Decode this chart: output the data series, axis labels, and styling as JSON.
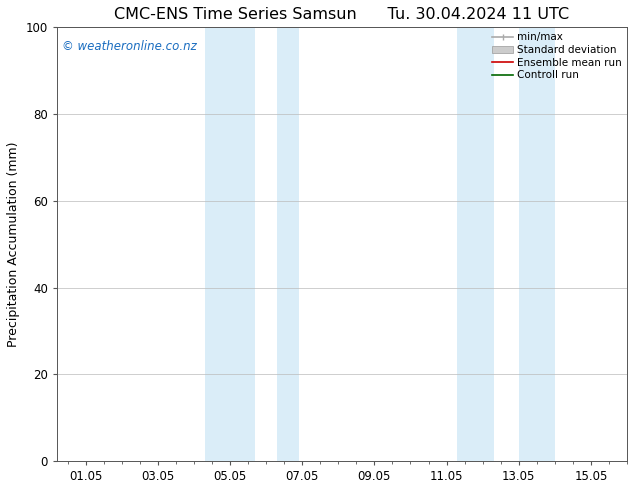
{
  "title_left": "CMC-ENS Time Series Samsun",
  "title_right": "Tu. 30.04.2024 11 UTC",
  "ylabel": "Precipitation Accumulation (mm)",
  "ylim": [
    0,
    100
  ],
  "xtick_labels": [
    "01.05",
    "03.05",
    "05.05",
    "07.05",
    "09.05",
    "11.05",
    "13.05",
    "15.05"
  ],
  "xtick_positions": [
    0,
    2,
    4,
    6,
    8,
    10,
    12,
    14
  ],
  "xlim": [
    -0.8,
    15.0
  ],
  "shaded_regions": [
    {
      "xmin": 3.3,
      "xmax": 4.7
    },
    {
      "xmin": 5.3,
      "xmax": 5.9
    },
    {
      "xmin": 10.3,
      "xmax": 11.3
    },
    {
      "xmin": 12.0,
      "xmax": 13.0
    }
  ],
  "shaded_color": "#daedf8",
  "background_color": "#ffffff",
  "watermark_text": "© weatheronline.co.nz",
  "watermark_color": "#1a6dc0",
  "legend_items": [
    {
      "label": "min/max",
      "color": "#aaaaaa",
      "lw": 1.2,
      "style": "solid"
    },
    {
      "label": "Standard deviation",
      "color": "#cccccc",
      "lw": 5,
      "style": "solid"
    },
    {
      "label": "Ensemble mean run",
      "color": "#cc0000",
      "lw": 1.2,
      "style": "solid"
    },
    {
      "label": "Controll run",
      "color": "#006600",
      "lw": 1.2,
      "style": "solid"
    }
  ],
  "title_fontsize": 11.5,
  "tick_label_fontsize": 8.5,
  "ylabel_fontsize": 9,
  "watermark_fontsize": 8.5,
  "legend_fontsize": 7.5,
  "grid_color": "#bbbbbb",
  "grid_lw": 0.5,
  "tick_color": "#555555",
  "spine_color": "#555555"
}
